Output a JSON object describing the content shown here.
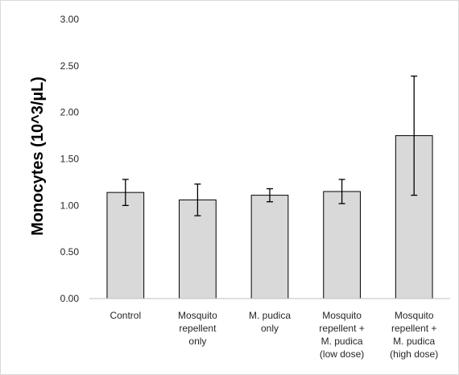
{
  "chart_data": {
    "type": "bar",
    "title": "",
    "xlabel": "",
    "ylabel": "Monocytes (10^3/µL)",
    "ylim": [
      0,
      3
    ],
    "yticks": [
      "0.00",
      "0.50",
      "1.00",
      "1.50",
      "2.00",
      "2.50",
      "3.00"
    ],
    "grid": false,
    "legend": "none",
    "categories": [
      [
        "Control"
      ],
      [
        "Mosquito",
        "repellent",
        "only"
      ],
      [
        "M. pudica",
        "only"
      ],
      [
        "Mosquito",
        "repellent +",
        "M. pudica",
        "(low dose)"
      ],
      [
        "Mosquito",
        "repellent +",
        "M. pudica",
        "(high dose)"
      ]
    ],
    "values": [
      1.14,
      1.06,
      1.11,
      1.15,
      1.75
    ],
    "errors": [
      0.14,
      0.17,
      0.07,
      0.13,
      0.64
    ],
    "colors": {
      "bar_fill": "#d9d9d9",
      "bar_stroke": "#000000",
      "axis": "#bfbfbf",
      "error": "#000000"
    }
  }
}
